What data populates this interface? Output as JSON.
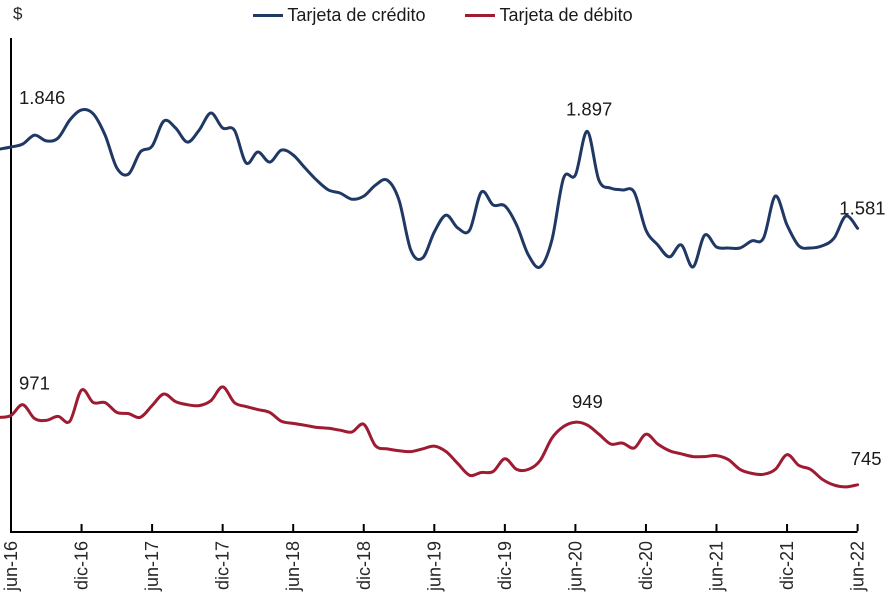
{
  "y_axis_unit_label": "$",
  "legend": {
    "position": "top-center",
    "items": [
      {
        "label": "Tarjeta de crédito",
        "color": "#1F3864"
      },
      {
        "label": "Tarjeta de débito",
        "color": "#9E1B32"
      }
    ]
  },
  "chart_data": {
    "type": "line",
    "title": "",
    "xlabel": "",
    "ylabel": "$",
    "frequency": "monthly",
    "x_start": "jun-16",
    "x_end": "jun-22",
    "grid": false,
    "y_tick_labels_visible": false,
    "ylim_approx": [
      590,
      2200
    ],
    "x_tick_labels": [
      "jun-16",
      "dic-16",
      "jun-17",
      "dic-17",
      "jun-18",
      "dic-18",
      "jun-19",
      "dic-19",
      "jun-20",
      "dic-20",
      "jun-21",
      "dic-21",
      "jun-22"
    ],
    "x": [
      "jun-16",
      "jul-16",
      "ago-16",
      "sep-16",
      "oct-16",
      "nov-16",
      "dic-16",
      "ene-17",
      "feb-17",
      "mar-17",
      "abr-17",
      "may-17",
      "jun-17",
      "jul-17",
      "ago-17",
      "sep-17",
      "oct-17",
      "nov-17",
      "dic-17",
      "ene-18",
      "feb-18",
      "mar-18",
      "abr-18",
      "may-18",
      "jun-18",
      "jul-18",
      "ago-18",
      "sep-18",
      "oct-18",
      "nov-18",
      "dic-18",
      "ene-19",
      "feb-19",
      "mar-19",
      "abr-19",
      "may-19",
      "jun-19",
      "jul-19",
      "ago-19",
      "sep-19",
      "oct-19",
      "nov-19",
      "dic-19",
      "ene-20",
      "feb-20",
      "mar-20",
      "abr-20",
      "may-20",
      "jun-20",
      "jul-20",
      "ago-20",
      "sep-20",
      "oct-20",
      "nov-20",
      "dic-20",
      "ene-21",
      "feb-21",
      "mar-21",
      "abr-21",
      "may-21",
      "jun-21",
      "jul-21",
      "ago-21",
      "sep-21",
      "oct-21",
      "nov-21",
      "dic-21",
      "ene-22",
      "feb-22",
      "mar-22",
      "abr-22",
      "may-22",
      "jun-22"
    ],
    "series": [
      {
        "name": "Tarjeta de crédito",
        "color": "#1F3864",
        "values": [
          1846,
          1856,
          1885,
          1866,
          1875,
          1934,
          1967,
          1954,
          1885,
          1778,
          1758,
          1830,
          1849,
          1931,
          1908,
          1862,
          1901,
          1957,
          1908,
          1901,
          1794,
          1830,
          1797,
          1836,
          1820,
          1778,
          1738,
          1706,
          1696,
          1676,
          1686,
          1722,
          1738,
          1673,
          1510,
          1484,
          1569,
          1624,
          1582,
          1575,
          1699,
          1657,
          1654,
          1592,
          1494,
          1455,
          1543,
          1745,
          1755,
          1897,
          1738,
          1712,
          1706,
          1699,
          1575,
          1527,
          1488,
          1527,
          1455,
          1559,
          1520,
          1517,
          1517,
          1540,
          1549,
          1686,
          1592,
          1524,
          1517,
          1524,
          1549,
          1621,
          1581
        ]
      },
      {
        "name": "Tarjeta de débito",
        "color": "#9E1B32",
        "values": [
          971,
          1006,
          961,
          955,
          968,
          952,
          1054,
          1013,
          1013,
          981,
          977,
          965,
          1003,
          1041,
          1016,
          1006,
          1003,
          1019,
          1064,
          1013,
          1000,
          990,
          981,
          952,
          945,
          939,
          932,
          929,
          923,
          917,
          942,
          872,
          862,
          856,
          853,
          862,
          871,
          853,
          814,
          776,
          785,
          788,
          830,
          795,
          795,
          824,
          897,
          935,
          949,
          940,
          910,
          878,
          881,
          865,
          910,
          878,
          856,
          846,
          837,
          837,
          840,
          827,
          795,
          782,
          779,
          795,
          843,
          808,
          795,
          763,
          744,
          738,
          745
        ]
      }
    ],
    "annotations": [
      {
        "series": 0,
        "index": 0,
        "label": "1.846"
      },
      {
        "series": 0,
        "index": 49,
        "label": "1.897"
      },
      {
        "series": 0,
        "index": 72,
        "label": "1.581"
      },
      {
        "series": 1,
        "index": 0,
        "label": "971"
      },
      {
        "series": 1,
        "index": 48,
        "label": "949"
      },
      {
        "series": 1,
        "index": 72,
        "label": "745"
      }
    ]
  }
}
